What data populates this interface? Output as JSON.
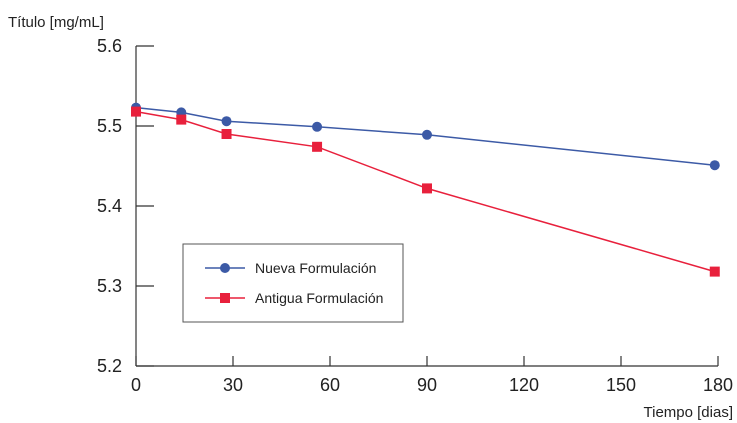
{
  "chart_data": {
    "type": "line",
    "ylabel": "Título [mg/mL]",
    "xlabel": "Tiempo [dias]",
    "xlim": [
      0,
      180
    ],
    "ylim": [
      5.2,
      5.6
    ],
    "xticks": [
      0,
      30,
      60,
      90,
      120,
      150,
      180
    ],
    "yticks": [
      5.2,
      5.3,
      5.4,
      5.5,
      5.6
    ],
    "xtick_labels": [
      "0",
      "30",
      "60",
      "90",
      "120",
      "150",
      "180"
    ],
    "ytick_labels": [
      "5.2",
      "5.3",
      "5.4",
      "5.5",
      "5.6"
    ],
    "grid": false,
    "legend_position": "lower-left",
    "series": [
      {
        "name": "Nueva Formulación",
        "color": "#3c5aa6",
        "marker": "circle",
        "x": [
          0,
          14,
          28,
          56,
          90,
          179
        ],
        "y": [
          5.523,
          5.517,
          5.506,
          5.499,
          5.489,
          5.451
        ]
      },
      {
        "name": "Antigua Formulación",
        "color": "#e8203c",
        "marker": "square",
        "x": [
          0,
          14,
          28,
          56,
          90,
          179
        ],
        "y": [
          5.518,
          5.508,
          5.49,
          5.474,
          5.422,
          5.318
        ]
      }
    ]
  }
}
